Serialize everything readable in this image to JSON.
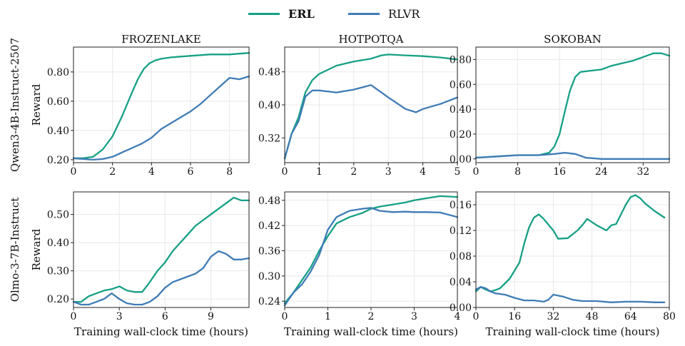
{
  "legend": {
    "erl": {
      "label": "ERL",
      "color": "#16a085"
    },
    "rlvr": {
      "label": "RLVR",
      "color": "#3f7cb6"
    }
  },
  "row_labels": [
    "Qwen3-4B-Instruct-2507",
    "Olmo-3-7B-Instruct"
  ],
  "ylabel": "Reward",
  "xlabel": "Training wall-clock time (hours)",
  "column_titles": [
    "FROZENLAKE",
    "HOTPOTQA",
    "SOKOBAN"
  ],
  "chart_data": [
    {
      "type": "line",
      "title": "FROZENLAKE",
      "row": "Qwen3-4B-Instruct-2507",
      "ylabel": "Reward",
      "xlabel": "",
      "xlim": [
        0,
        9
      ],
      "ylim": [
        0.18,
        0.97
      ],
      "xticks": [
        0,
        2,
        4,
        6,
        8
      ],
      "xtick_labels": [
        "0",
        "2",
        "4",
        "6",
        "8"
      ],
      "yticks": [
        0.2,
        0.4,
        0.6,
        0.8
      ],
      "ytick_labels": [
        "0.20",
        "0.40",
        "0.60",
        "0.80"
      ],
      "series": [
        {
          "name": "ERL",
          "x": [
            0,
            0.5,
            1,
            1.5,
            2,
            2.5,
            3,
            3.3,
            3.6,
            3.9,
            4.2,
            4.5,
            5,
            5.5,
            6,
            6.5,
            7,
            7.5,
            8,
            8.5,
            9
          ],
          "y": [
            0.21,
            0.21,
            0.22,
            0.27,
            0.36,
            0.5,
            0.66,
            0.75,
            0.82,
            0.86,
            0.88,
            0.89,
            0.9,
            0.905,
            0.91,
            0.915,
            0.92,
            0.92,
            0.92,
            0.925,
            0.93
          ]
        },
        {
          "name": "RLVR",
          "x": [
            0,
            0.5,
            1,
            1.5,
            2,
            2.5,
            3,
            3.5,
            4,
            4.5,
            5,
            5.5,
            6,
            6.5,
            7,
            7.5,
            8,
            8.5,
            9
          ],
          "y": [
            0.21,
            0.205,
            0.2,
            0.205,
            0.22,
            0.25,
            0.28,
            0.31,
            0.35,
            0.41,
            0.45,
            0.49,
            0.53,
            0.58,
            0.64,
            0.7,
            0.76,
            0.75,
            0.77
          ]
        }
      ]
    },
    {
      "type": "line",
      "title": "HOTPOTQA",
      "row": "Qwen3-4B-Instruct-2507",
      "ylabel": "",
      "xlabel": "",
      "xlim": [
        0,
        5
      ],
      "ylim": [
        0.26,
        0.54
      ],
      "xticks": [
        0,
        1,
        2,
        3,
        4,
        5
      ],
      "xtick_labels": [
        "0",
        "1",
        "2",
        "3",
        "4",
        "5"
      ],
      "yticks": [
        0.32,
        0.4,
        0.48
      ],
      "ytick_labels": [
        "0.32",
        "0.40",
        "0.48"
      ],
      "series": [
        {
          "name": "ERL",
          "x": [
            0,
            0.2,
            0.4,
            0.6,
            0.8,
            1,
            1.5,
            2,
            2.5,
            2.8,
            3,
            3.5,
            4,
            4.5,
            5
          ],
          "y": [
            0.27,
            0.33,
            0.37,
            0.43,
            0.46,
            0.475,
            0.495,
            0.505,
            0.512,
            0.52,
            0.522,
            0.52,
            0.518,
            0.515,
            0.51
          ]
        },
        {
          "name": "RLVR",
          "x": [
            0,
            0.2,
            0.4,
            0.6,
            0.8,
            1,
            1.5,
            2,
            2.5,
            2.8,
            3,
            3.5,
            3.8,
            4,
            4.5,
            5
          ],
          "y": [
            0.27,
            0.33,
            0.36,
            0.42,
            0.435,
            0.435,
            0.43,
            0.437,
            0.448,
            0.43,
            0.418,
            0.39,
            0.382,
            0.39,
            0.402,
            0.418
          ]
        }
      ]
    },
    {
      "type": "line",
      "title": "SOKOBAN",
      "row": "Qwen3-4B-Instruct-2507",
      "ylabel": "",
      "xlabel": "",
      "xlim": [
        0,
        37
      ],
      "ylim": [
        -0.03,
        0.9
      ],
      "xticks": [
        0,
        8,
        16,
        24,
        32
      ],
      "xtick_labels": [
        "0",
        "8",
        "16",
        "24",
        "32"
      ],
      "yticks": [
        0,
        0.2,
        0.4,
        0.6,
        0.8
      ],
      "ytick_labels": [
        "0.00",
        "0.20",
        "0.40",
        "0.60",
        "0.80"
      ],
      "series": [
        {
          "name": "ERL",
          "x": [
            0,
            4,
            8,
            12,
            14,
            15,
            16,
            17,
            18,
            19,
            20,
            22,
            24,
            26,
            28,
            30,
            32,
            34,
            35.5,
            37
          ],
          "y": [
            0.01,
            0.02,
            0.03,
            0.03,
            0.05,
            0.1,
            0.2,
            0.38,
            0.55,
            0.66,
            0.7,
            0.71,
            0.72,
            0.75,
            0.77,
            0.79,
            0.82,
            0.85,
            0.85,
            0.83
          ]
        },
        {
          "name": "RLVR",
          "x": [
            0,
            4,
            8,
            12,
            15,
            17,
            19,
            21,
            24,
            28,
            32,
            37
          ],
          "y": [
            0.01,
            0.02,
            0.03,
            0.03,
            0.04,
            0.05,
            0.04,
            0.01,
            0.0,
            0.0,
            0.0,
            0.0
          ]
        }
      ]
    },
    {
      "type": "line",
      "title": "",
      "row": "Olmo-3-7B-Instruct",
      "ylabel": "Reward",
      "xlabel": "Training wall-clock time (hours)",
      "xlim": [
        0,
        11.5
      ],
      "ylim": [
        0.17,
        0.58
      ],
      "xticks": [
        0,
        3,
        6,
        9
      ],
      "xtick_labels": [
        "0",
        "3",
        "6",
        "9"
      ],
      "yticks": [
        0.2,
        0.3,
        0.4,
        0.5
      ],
      "ytick_labels": [
        "0.20",
        "0.30",
        "0.40",
        "0.50"
      ],
      "series": [
        {
          "name": "ERL",
          "x": [
            0,
            0.5,
            1,
            1.5,
            2,
            2.5,
            3,
            3.5,
            4,
            4.5,
            5,
            5.5,
            6,
            6.5,
            7,
            7.5,
            8,
            8.5,
            9,
            9.5,
            10,
            10.5,
            11,
            11.5
          ],
          "y": [
            0.19,
            0.19,
            0.21,
            0.22,
            0.23,
            0.235,
            0.245,
            0.23,
            0.225,
            0.225,
            0.26,
            0.3,
            0.33,
            0.37,
            0.4,
            0.43,
            0.46,
            0.48,
            0.5,
            0.52,
            0.54,
            0.56,
            0.55,
            0.55
          ]
        },
        {
          "name": "RLVR",
          "x": [
            0,
            0.5,
            1,
            1.5,
            2,
            2.5,
            3,
            3.5,
            4,
            4.5,
            5,
            5.5,
            6,
            6.5,
            7,
            7.5,
            8,
            8.5,
            9,
            9.5,
            10,
            10.5,
            11,
            11.5
          ],
          "y": [
            0.19,
            0.18,
            0.18,
            0.19,
            0.2,
            0.22,
            0.2,
            0.185,
            0.18,
            0.18,
            0.19,
            0.21,
            0.24,
            0.26,
            0.27,
            0.28,
            0.29,
            0.31,
            0.35,
            0.37,
            0.36,
            0.34,
            0.34,
            0.345
          ]
        }
      ]
    },
    {
      "type": "line",
      "title": "",
      "row": "Olmo-3-7B-Instruct",
      "ylabel": "",
      "xlabel": "Training wall-clock time (hours)",
      "xlim": [
        0,
        4
      ],
      "ylim": [
        0.225,
        0.5
      ],
      "xticks": [
        0,
        1,
        2,
        3,
        4
      ],
      "xtick_labels": [
        "0",
        "1",
        "2",
        "3",
        "4"
      ],
      "yticks": [
        0.24,
        0.3,
        0.36,
        0.42,
        0.48
      ],
      "ytick_labels": [
        "0.24",
        "0.30",
        "0.36",
        "0.42",
        "0.48"
      ],
      "series": [
        {
          "name": "ERL",
          "x": [
            0,
            0.2,
            0.4,
            0.6,
            0.8,
            1,
            1.2,
            1.5,
            1.8,
            2,
            2.2,
            2.5,
            2.8,
            3,
            3.3,
            3.6,
            4
          ],
          "y": [
            0.235,
            0.26,
            0.29,
            0.32,
            0.36,
            0.395,
            0.425,
            0.44,
            0.45,
            0.46,
            0.465,
            0.47,
            0.475,
            0.48,
            0.485,
            0.49,
            0.488
          ]
        },
        {
          "name": "RLVR",
          "x": [
            0,
            0.2,
            0.4,
            0.6,
            0.8,
            1,
            1.2,
            1.5,
            1.8,
            2,
            2.2,
            2.5,
            2.8,
            3,
            3.3,
            3.6,
            4
          ],
          "y": [
            0.23,
            0.26,
            0.28,
            0.31,
            0.35,
            0.41,
            0.44,
            0.455,
            0.46,
            0.462,
            0.455,
            0.452,
            0.453,
            0.452,
            0.452,
            0.451,
            0.44
          ]
        }
      ]
    },
    {
      "type": "line",
      "title": "",
      "row": "Olmo-3-7B-Instruct",
      "ylabel": "",
      "xlabel": "Training wall-clock time (hours)",
      "xlim": [
        0,
        80
      ],
      "ylim": [
        0,
        0.18
      ],
      "xticks": [
        0,
        16,
        32,
        48,
        64,
        80
      ],
      "xtick_labels": [
        "0",
        "16",
        "32",
        "48",
        "64",
        "80"
      ],
      "yticks": [
        0,
        0.04,
        0.08,
        0.12,
        0.16
      ],
      "ytick_labels": [
        "0.00",
        "0.04",
        "0.08",
        "0.12",
        "0.16"
      ],
      "series": [
        {
          "name": "ERL",
          "x": [
            0,
            2,
            4,
            6,
            8,
            10,
            14,
            18,
            20,
            22,
            24,
            26,
            28,
            32,
            34,
            38,
            42,
            44,
            46,
            50,
            54,
            56,
            58,
            62,
            64,
            66,
            68,
            70,
            74,
            78
          ],
          "y": [
            0.025,
            0.032,
            0.028,
            0.025,
            0.027,
            0.03,
            0.045,
            0.07,
            0.1,
            0.125,
            0.14,
            0.145,
            0.138,
            0.12,
            0.107,
            0.108,
            0.12,
            0.128,
            0.138,
            0.128,
            0.12,
            0.128,
            0.13,
            0.16,
            0.172,
            0.175,
            0.17,
            0.162,
            0.15,
            0.14
          ]
        },
        {
          "name": "RLVR",
          "x": [
            0,
            2,
            4,
            6,
            8,
            12,
            16,
            20,
            24,
            28,
            30,
            32,
            36,
            40,
            44,
            50,
            56,
            62,
            68,
            74,
            78
          ],
          "y": [
            0.028,
            0.032,
            0.03,
            0.025,
            0.022,
            0.02,
            0.015,
            0.011,
            0.011,
            0.009,
            0.012,
            0.02,
            0.017,
            0.012,
            0.01,
            0.01,
            0.008,
            0.009,
            0.009,
            0.008,
            0.008
          ]
        }
      ]
    }
  ]
}
